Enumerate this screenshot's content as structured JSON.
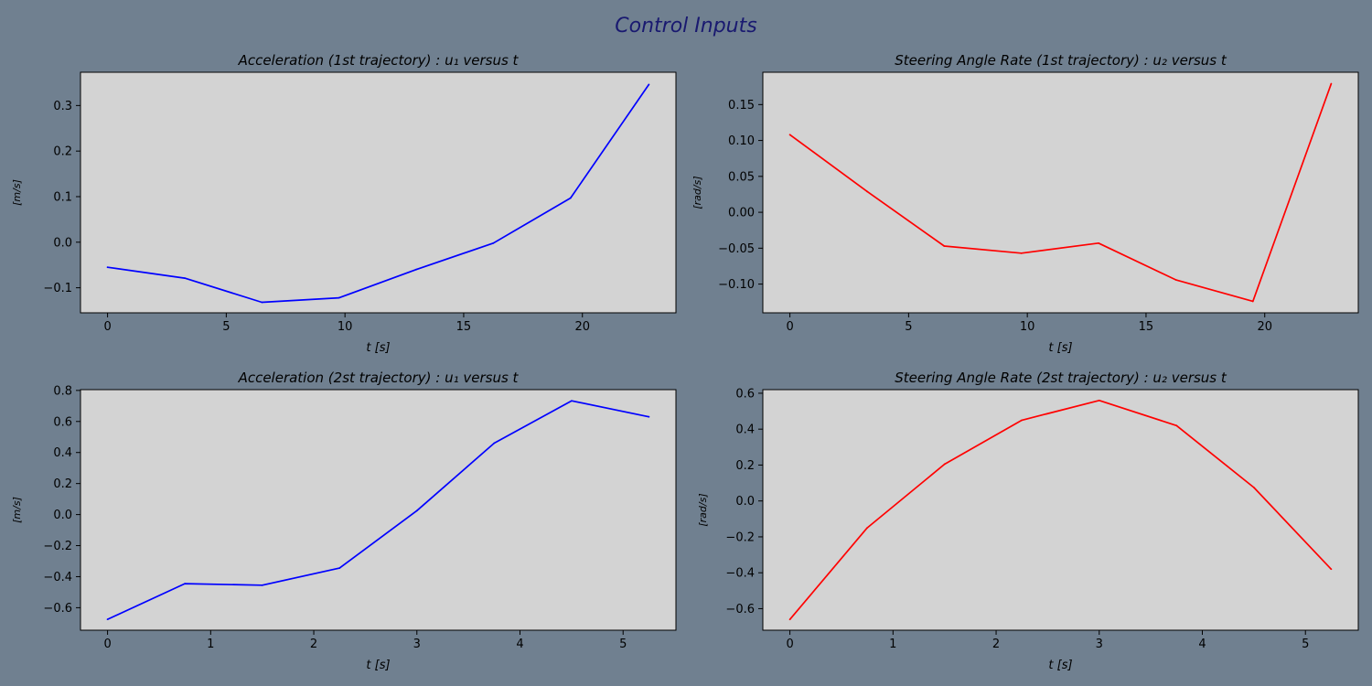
{
  "figure": {
    "title": "Control Inputs",
    "background": "#708090",
    "axes_background": "#d3d3d3"
  },
  "chart_data": [
    {
      "type": "line",
      "title": "Acceleration (1st trajectory) : u₁ versus t",
      "xlabel": "t [s]",
      "ylabel": "[m/s]",
      "xlim": [
        -1.14,
        23.94
      ],
      "ylim": [
        -0.155,
        0.373
      ],
      "xticks": [
        0,
        5,
        10,
        15,
        20
      ],
      "yticks": [
        -0.1,
        0.0,
        0.1,
        0.2,
        0.3
      ],
      "ytick_labels": [
        "−0.1",
        "0.0",
        "0.1",
        "0.2",
        "0.3"
      ],
      "grid": false,
      "series": [
        {
          "color": "#0000ff",
          "x": [
            0,
            3.25,
            6.5,
            9.75,
            13.0,
            16.25,
            19.5,
            22.8
          ],
          "y": [
            -0.055,
            -0.079,
            -0.132,
            -0.122,
            -0.06,
            -0.002,
            0.097,
            0.346
          ]
        }
      ]
    },
    {
      "type": "line",
      "title": "Steering Angle Rate (1st trajectory) : u₂ versus t",
      "xlabel": "t [s]",
      "ylabel": "[rad/s]",
      "xlim": [
        -1.14,
        23.94
      ],
      "ylim": [
        -0.14,
        0.195
      ],
      "xticks": [
        0,
        5,
        10,
        15,
        20
      ],
      "yticks": [
        -0.1,
        -0.05,
        0.0,
        0.05,
        0.1,
        0.15
      ],
      "ytick_labels": [
        "−0.10",
        "−0.05",
        "0.00",
        "0.05",
        "0.10",
        "0.15"
      ],
      "grid": false,
      "series": [
        {
          "color": "#ff0000",
          "x": [
            0,
            3.25,
            6.5,
            9.75,
            13.0,
            16.25,
            19.5,
            22.8
          ],
          "y": [
            0.108,
            0.029,
            -0.047,
            -0.057,
            -0.043,
            -0.094,
            -0.124,
            0.179
          ]
        }
      ]
    },
    {
      "type": "line",
      "title": "Acceleration (2st trajectory) : u₁ versus t",
      "xlabel": "t [s]",
      "ylabel": "[m/s]",
      "xlim": [
        -0.2625,
        5.5125
      ],
      "ylim": [
        -0.745,
        0.805
      ],
      "xticks": [
        0,
        1,
        2,
        3,
        4,
        5
      ],
      "yticks": [
        -0.6,
        -0.4,
        -0.2,
        0.0,
        0.2,
        0.4,
        0.6,
        0.8
      ],
      "ytick_labels": [
        "−0.6",
        "−0.4",
        "−0.2",
        "0.0",
        "0.2",
        "0.4",
        "0.6",
        "0.8"
      ],
      "grid": false,
      "series": [
        {
          "color": "#0000ff",
          "x": [
            0,
            0.75,
            1.5,
            2.25,
            3.0,
            3.75,
            4.5,
            5.25
          ],
          "y": [
            -0.675,
            -0.445,
            -0.455,
            -0.345,
            0.025,
            0.46,
            0.733,
            0.63
          ]
        }
      ]
    },
    {
      "type": "line",
      "title": "Steering Angle Rate (2st trajectory) : u₂ versus t",
      "xlabel": "t [s]",
      "ylabel": "[rad/s]",
      "xlim": [
        -0.2625,
        5.5125
      ],
      "ylim": [
        -0.72,
        0.62
      ],
      "xticks": [
        0,
        1,
        2,
        3,
        4,
        5
      ],
      "yticks": [
        -0.6,
        -0.4,
        -0.2,
        0.0,
        0.2,
        0.4,
        0.6
      ],
      "ytick_labels": [
        "−0.6",
        "−0.4",
        "−0.2",
        "0.0",
        "0.2",
        "0.4",
        "0.6"
      ],
      "grid": false,
      "series": [
        {
          "color": "#ff0000",
          "x": [
            0,
            0.75,
            1.5,
            2.25,
            3.0,
            3.75,
            4.5,
            5.25
          ],
          "y": [
            -0.66,
            -0.15,
            0.205,
            0.45,
            0.56,
            0.42,
            0.075,
            -0.38
          ]
        }
      ]
    }
  ]
}
